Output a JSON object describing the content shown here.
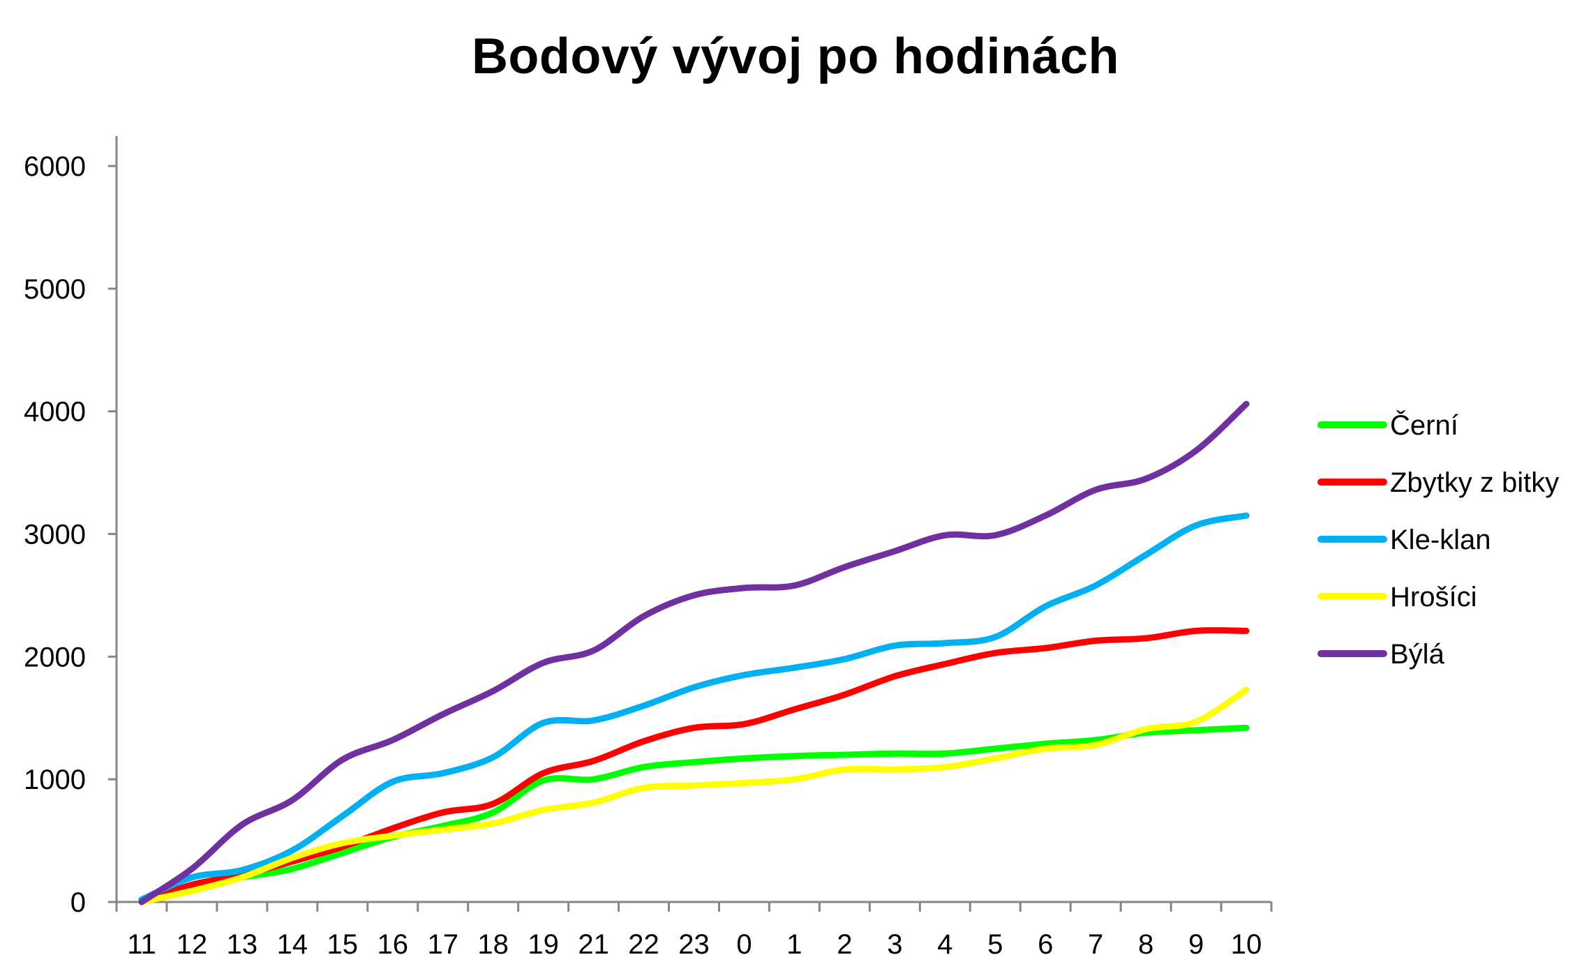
{
  "chart_data": {
    "type": "line",
    "title": "Bodový vývoj po hodinách",
    "xlabel": "",
    "ylabel": "",
    "ylim": [
      0,
      6000
    ],
    "yticks": [
      0,
      1000,
      2000,
      3000,
      4000,
      5000,
      6000
    ],
    "grid": false,
    "legend_position": "right",
    "categories": [
      "11",
      "12",
      "13",
      "14",
      "15",
      "16",
      "17",
      "18",
      "19",
      "21",
      "22",
      "23",
      "0",
      "1",
      "2",
      "3",
      "4",
      "5",
      "6",
      "7",
      "8",
      "9",
      "10"
    ],
    "series": [
      {
        "name": "Černí",
        "color": "#00ff00",
        "values": [
          20,
          120,
          200,
          270,
          400,
          530,
          620,
          730,
          990,
          1000,
          1100,
          1140,
          1170,
          1190,
          1200,
          1210,
          1210,
          1250,
          1290,
          1320,
          1380,
          1400,
          1420
        ]
      },
      {
        "name": "Zbytky z bitky",
        "color": "#ff0000",
        "values": [
          0,
          140,
          220,
          330,
          450,
          600,
          730,
          800,
          1050,
          1150,
          1310,
          1420,
          1450,
          1570,
          1690,
          1840,
          1940,
          2030,
          2070,
          2130,
          2150,
          2210,
          2210
        ]
      },
      {
        "name": "Kle-klan",
        "color": "#00b0f0",
        "values": [
          20,
          200,
          260,
          420,
          700,
          980,
          1050,
          1180,
          1460,
          1480,
          1600,
          1750,
          1850,
          1910,
          1980,
          2090,
          2110,
          2160,
          2410,
          2580,
          2830,
          3070,
          3150
        ]
      },
      {
        "name": "Hrošíci",
        "color": "#ffff00",
        "values": [
          0,
          90,
          200,
          360,
          480,
          540,
          590,
          640,
          750,
          810,
          930,
          950,
          970,
          1000,
          1080,
          1080,
          1100,
          1170,
          1250,
          1280,
          1410,
          1470,
          1730
        ]
      },
      {
        "name": "Býlá",
        "color": "#7030a0",
        "values": [
          0,
          270,
          630,
          830,
          1160,
          1320,
          1530,
          1720,
          1950,
          2050,
          2330,
          2500,
          2560,
          2580,
          2730,
          2860,
          2990,
          2990,
          3150,
          3360,
          3450,
          3680,
          4060
        ]
      }
    ]
  }
}
